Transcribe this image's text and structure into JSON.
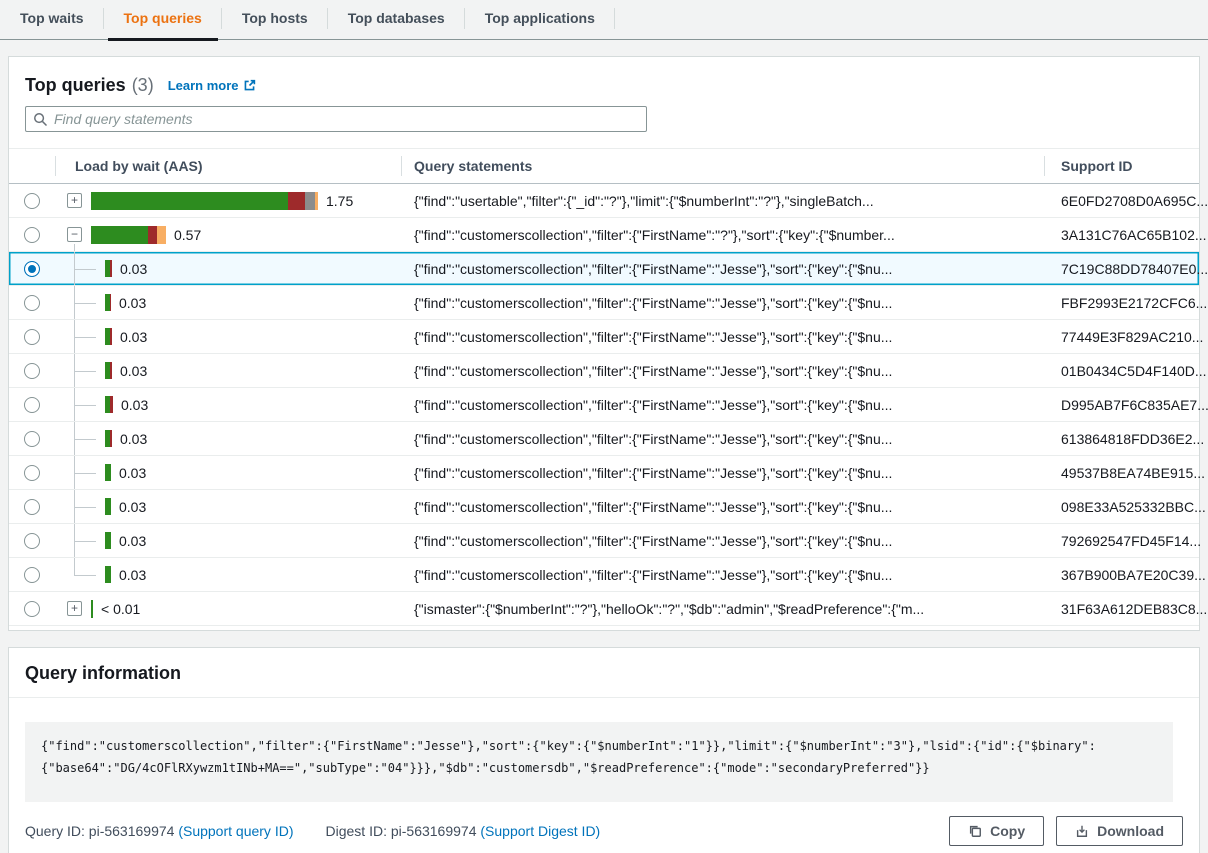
{
  "colors": {
    "green": "#2d8c1f",
    "darkred": "#9e2a2b",
    "gray": "#8c8c8c",
    "orange": "#f8ae63",
    "accent_blue": "#0073bb",
    "active_tab_orange": "#ec7211",
    "selected_row_border": "#00a1c9"
  },
  "tabs": {
    "items": [
      {
        "label": "Top waits",
        "active": false
      },
      {
        "label": "Top queries",
        "active": true
      },
      {
        "label": "Top hosts",
        "active": false
      },
      {
        "label": "Top databases",
        "active": false
      },
      {
        "label": "Top applications",
        "active": false
      }
    ]
  },
  "top_queries": {
    "title": "Top queries",
    "count": "(3)",
    "learn_more_label": "Learn more",
    "search_placeholder": "Find query statements",
    "columns": {
      "load": "Load by wait (AAS)",
      "query": "Query statements",
      "support": "Support ID"
    },
    "rows": [
      {
        "type": "parent",
        "expand": "plus",
        "value": "1.75",
        "bar": [
          [
            "green",
            197
          ],
          [
            "darkred",
            17
          ],
          [
            "gray",
            10
          ],
          [
            "orange",
            3
          ]
        ],
        "query": "{\"find\":\"usertable\",\"filter\":{\"_id\":\"?\"},\"limit\":{\"$numberInt\":\"?\"},\"singleBatch...",
        "support": "6E0FD2708D0A695C...",
        "selected": false
      },
      {
        "type": "parent-open",
        "expand": "minus",
        "value": "0.57",
        "bar": [
          [
            "green",
            57
          ],
          [
            "darkred",
            9
          ],
          [
            "orange",
            9
          ]
        ],
        "query": "{\"find\":\"customerscollection\",\"filter\":{\"FirstName\":\"?\"},\"sort\":{\"key\":{\"$number...",
        "support": "3A131C76AC65B102...",
        "selected": false
      },
      {
        "type": "child",
        "expand": null,
        "value": "0.03",
        "bar": [
          [
            "green",
            5
          ],
          [
            "darkred",
            2
          ]
        ],
        "query": "{\"find\":\"customerscollection\",\"filter\":{\"FirstName\":\"Jesse\"},\"sort\":{\"key\":{\"$nu...",
        "support": "7C19C88DD78407E0...",
        "selected": true
      },
      {
        "type": "child",
        "expand": null,
        "value": "0.03",
        "bar": [
          [
            "green",
            5
          ],
          [
            "darkred",
            1
          ]
        ],
        "query": "{\"find\":\"customerscollection\",\"filter\":{\"FirstName\":\"Jesse\"},\"sort\":{\"key\":{\"$nu...",
        "support": "FBF2993E2172CFC6...",
        "selected": false
      },
      {
        "type": "child",
        "expand": null,
        "value": "0.03",
        "bar": [
          [
            "green",
            5
          ],
          [
            "darkred",
            2
          ]
        ],
        "query": "{\"find\":\"customerscollection\",\"filter\":{\"FirstName\":\"Jesse\"},\"sort\":{\"key\":{\"$nu...",
        "support": "77449E3F829AC210...",
        "selected": false
      },
      {
        "type": "child",
        "expand": null,
        "value": "0.03",
        "bar": [
          [
            "green",
            5
          ],
          [
            "darkred",
            2
          ]
        ],
        "query": "{\"find\":\"customerscollection\",\"filter\":{\"FirstName\":\"Jesse\"},\"sort\":{\"key\":{\"$nu...",
        "support": "01B0434C5D4F140D...",
        "selected": false
      },
      {
        "type": "child",
        "expand": null,
        "value": "0.03",
        "bar": [
          [
            "green",
            5
          ],
          [
            "darkred",
            3
          ]
        ],
        "query": "{\"find\":\"customerscollection\",\"filter\":{\"FirstName\":\"Jesse\"},\"sort\":{\"key\":{\"$nu...",
        "support": "D995AB7F6C835AE7...",
        "selected": false
      },
      {
        "type": "child",
        "expand": null,
        "value": "0.03",
        "bar": [
          [
            "green",
            5
          ],
          [
            "darkred",
            2
          ]
        ],
        "query": "{\"find\":\"customerscollection\",\"filter\":{\"FirstName\":\"Jesse\"},\"sort\":{\"key\":{\"$nu...",
        "support": "613864818FDD36E2...",
        "selected": false
      },
      {
        "type": "child",
        "expand": null,
        "value": "0.03",
        "bar": [
          [
            "green",
            6
          ]
        ],
        "query": "{\"find\":\"customerscollection\",\"filter\":{\"FirstName\":\"Jesse\"},\"sort\":{\"key\":{\"$nu...",
        "support": "49537B8EA74BE915...",
        "selected": false
      },
      {
        "type": "child",
        "expand": null,
        "value": "0.03",
        "bar": [
          [
            "green",
            6
          ]
        ],
        "query": "{\"find\":\"customerscollection\",\"filter\":{\"FirstName\":\"Jesse\"},\"sort\":{\"key\":{\"$nu...",
        "support": "098E33A525332BBC...",
        "selected": false
      },
      {
        "type": "child",
        "expand": null,
        "value": "0.03",
        "bar": [
          [
            "green",
            6
          ]
        ],
        "query": "{\"find\":\"customerscollection\",\"filter\":{\"FirstName\":\"Jesse\"},\"sort\":{\"key\":{\"$nu...",
        "support": "792692547FD45F14...",
        "selected": false
      },
      {
        "type": "child-last",
        "expand": null,
        "value": "0.03",
        "bar": [
          [
            "green",
            6
          ]
        ],
        "query": "{\"find\":\"customerscollection\",\"filter\":{\"FirstName\":\"Jesse\"},\"sort\":{\"key\":{\"$nu...",
        "support": "367B900BA7E20C39...",
        "selected": false
      },
      {
        "type": "parent",
        "expand": "plus",
        "value": "< 0.01",
        "bar": [
          [
            "green",
            2
          ]
        ],
        "query": "{\"ismaster\":{\"$numberInt\":\"?\"},\"helloOk\":\"?\",\"$db\":\"admin\",\"$readPreference\":{\"m...",
        "support": "31F63A612DEB83C8...",
        "selected": false
      }
    ]
  },
  "query_info": {
    "title": "Query information",
    "code": "{\"find\":\"customerscollection\",\"filter\":{\"FirstName\":\"Jesse\"},\"sort\":{\"key\":{\"$numberInt\":\"1\"}},\"limit\":{\"$numberInt\":\"3\"},\"lsid\":{\"id\":{\"$binary\":\n{\"base64\":\"DG/4cOFlRXywzm1tINb+MA==\",\"subType\":\"04\"}}},\"$db\":\"customersdb\",\"$readPreference\":{\"mode\":\"secondaryPreferred\"}}",
    "query_id_label": "Query ID: pi-563169974",
    "query_id_link": "(Support query ID)",
    "digest_id_label": "Digest ID: pi-563169974",
    "digest_id_link": "(Support Digest ID)",
    "copy_label": "Copy",
    "download_label": "Download"
  }
}
